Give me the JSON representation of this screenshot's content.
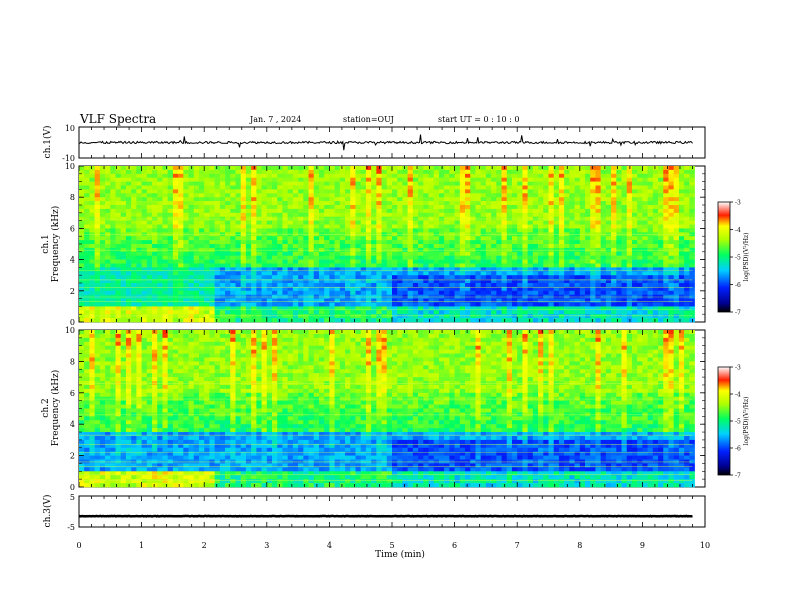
{
  "header": {
    "title": "VLF Spectra",
    "date": "Jan. 7 , 2024",
    "station": "station=OUJ",
    "start": "start UT =  0 : 10 : 0"
  },
  "chart_data": [
    {
      "type": "line",
      "panel": "waveform-ch1",
      "ylabel": "ch.1(V)",
      "ylim": [
        -10,
        10
      ],
      "yticks": [
        "10",
        "-10"
      ],
      "x_range_min": [
        0,
        9.8
      ],
      "description_of_series": "noisy waveform centered near 0 V with occasional spikes"
    },
    {
      "type": "heatmap",
      "panel": "spectrogram-ch1",
      "ylabel": "ch.1\nFrequency (kHz)",
      "ylim": [
        0,
        10
      ],
      "yticks": [
        "0",
        "2",
        "4",
        "6",
        "8",
        "10"
      ],
      "colorbar": {
        "label": "log(PSD)(V²/Hz)",
        "range": [
          -7,
          -3
        ],
        "ticks": [
          "-3",
          "-4",
          "-5",
          "-6",
          "-7"
        ]
      }
    },
    {
      "type": "heatmap",
      "panel": "spectrogram-ch2",
      "ylabel": "ch.2\nFrequency (kHz)",
      "ylim": [
        0,
        10
      ],
      "yticks": [
        "0",
        "2",
        "4",
        "6",
        "8",
        "10"
      ],
      "colorbar": {
        "label": "log(PSD)(V²/Hz)",
        "range": [
          -7,
          -3
        ],
        "ticks": [
          "-3",
          "-4",
          "-5",
          "-6",
          "-7"
        ]
      }
    },
    {
      "type": "line",
      "panel": "waveform-ch3",
      "ylabel": "ch.3(V)",
      "ylim": [
        -5,
        5
      ],
      "yticks": [
        "5",
        "-5"
      ],
      "x_range_min": [
        0,
        9.8
      ],
      "description_of_series": "flat trace near -1.5 V"
    }
  ],
  "xaxis": {
    "label": "Time (min)",
    "xlim": [
      0,
      10
    ],
    "ticks": [
      "0",
      "1",
      "2",
      "3",
      "4",
      "5",
      "6",
      "7",
      "8",
      "9",
      "10"
    ]
  }
}
